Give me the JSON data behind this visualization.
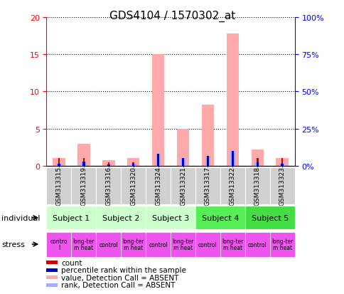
{
  "title": "GDS4104 / 1570302_at",
  "samples": [
    "GSM313315",
    "GSM313319",
    "GSM313316",
    "GSM313320",
    "GSM313324",
    "GSM313321",
    "GSM313317",
    "GSM313322",
    "GSM313318",
    "GSM313323"
  ],
  "count_values": [
    1.0,
    1.0,
    0.5,
    0.5,
    1.0,
    1.0,
    1.0,
    1.0,
    1.0,
    1.0
  ],
  "rank_values": [
    1.5,
    3.0,
    1.0,
    1.3,
    8.2,
    5.0,
    6.5,
    9.8,
    2.5,
    1.5
  ],
  "absent_value": [
    1.0,
    3.0,
    0.8,
    1.0,
    15.0,
    5.0,
    8.2,
    17.8,
    2.2,
    1.0
  ],
  "absent_rank": [
    1.5,
    3.0,
    1.0,
    1.3,
    8.2,
    5.0,
    6.5,
    9.8,
    2.5,
    1.5
  ],
  "subjects": [
    {
      "label": "Subject 1",
      "start": 0,
      "end": 2
    },
    {
      "label": "Subject 2",
      "start": 2,
      "end": 4
    },
    {
      "label": "Subject 3",
      "start": 4,
      "end": 6
    },
    {
      "label": "Subject 4",
      "start": 6,
      "end": 8
    },
    {
      "label": "Subject 5",
      "start": 8,
      "end": 10
    }
  ],
  "subject_colors": [
    "#ccffcc",
    "#ccffcc",
    "#ccffcc",
    "#55ee55",
    "#44dd44"
  ],
  "stress": [
    {
      "label": "contro\nl",
      "start": 0,
      "end": 1
    },
    {
      "label": "long-ter\nm heat",
      "start": 1,
      "end": 2
    },
    {
      "label": "control",
      "start": 2,
      "end": 3
    },
    {
      "label": "long-ter\nm heat",
      "start": 3,
      "end": 4
    },
    {
      "label": "control",
      "start": 4,
      "end": 5
    },
    {
      "label": "long-ter\nm heat",
      "start": 5,
      "end": 6
    },
    {
      "label": "control",
      "start": 6,
      "end": 7
    },
    {
      "label": "long-ter\nm heat",
      "start": 7,
      "end": 8
    },
    {
      "label": "control",
      "start": 8,
      "end": 9
    },
    {
      "label": "long-ter\nm heat",
      "start": 9,
      "end": 10
    }
  ],
  "stress_color": "#ee55ee",
  "ylim_left": [
    0,
    20
  ],
  "ylim_right": [
    0,
    100
  ],
  "yticks_left": [
    0,
    5,
    10,
    15,
    20
  ],
  "ytick_labels_right": [
    "0%",
    "25%",
    "50%",
    "75%",
    "100%"
  ],
  "color_count": "#cc0000",
  "color_rank": "#0000cc",
  "color_absent_value": "#ffaaaa",
  "color_absent_rank": "#aaaaff",
  "legend_items": [
    [
      "#cc0000",
      "count"
    ],
    [
      "#0000cc",
      "percentile rank within the sample"
    ],
    [
      "#ffaaaa",
      "value, Detection Call = ABSENT"
    ],
    [
      "#aaaaff",
      "rank, Detection Call = ABSENT"
    ]
  ]
}
